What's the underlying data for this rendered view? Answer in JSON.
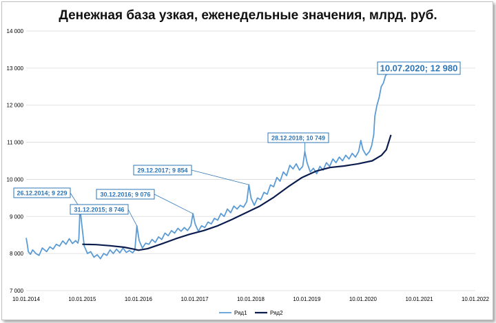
{
  "chart_data": {
    "type": "line",
    "title": "Денежная база узкая, еженедельные значения, млрд. руб.",
    "xlabel": "",
    "ylabel": "",
    "x_ticks": [
      "10.01.2014",
      "10.01.2015",
      "10.01.2016",
      "10.01.2017",
      "10.01.2018",
      "10.01.2019",
      "10.01.2020",
      "10.01.2021",
      "10.01.2022"
    ],
    "x_range": [
      "2014-01-10",
      "2022-01-10"
    ],
    "y_ticks": [
      "7 000",
      "8 000",
      "9 000",
      "10 000",
      "11 000",
      "12 000",
      "13 000",
      "14 000"
    ],
    "ylim": [
      7000,
      14000
    ],
    "grid": "horizontal",
    "legend_position": "bottom",
    "series": [
      {
        "name": "Ряд1",
        "color": "#5b9bd5",
        "points": [
          [
            "2014-01-10",
            8420
          ],
          [
            "2014-01-17",
            8250
          ],
          [
            "2014-01-24",
            8050
          ],
          [
            "2014-02-07",
            7980
          ],
          [
            "2014-02-21",
            8100
          ],
          [
            "2014-03-14",
            8000
          ],
          [
            "2014-04-04",
            7950
          ],
          [
            "2014-04-25",
            8150
          ],
          [
            "2014-05-23",
            8050
          ],
          [
            "2014-06-13",
            8180
          ],
          [
            "2014-07-04",
            8120
          ],
          [
            "2014-07-25",
            8250
          ],
          [
            "2014-08-15",
            8200
          ],
          [
            "2014-09-05",
            8340
          ],
          [
            "2014-09-26",
            8250
          ],
          [
            "2014-10-17",
            8400
          ],
          [
            "2014-11-07",
            8270
          ],
          [
            "2014-11-28",
            8350
          ],
          [
            "2014-12-12",
            8280
          ],
          [
            "2014-12-19",
            8400
          ],
          [
            "2014-12-26",
            9229
          ],
          [
            "2015-01-09",
            8700
          ],
          [
            "2015-01-23",
            8200
          ],
          [
            "2015-02-13",
            8000
          ],
          [
            "2015-03-06",
            8050
          ],
          [
            "2015-03-27",
            7900
          ],
          [
            "2015-04-17",
            7970
          ],
          [
            "2015-05-08",
            7860
          ],
          [
            "2015-05-29",
            8000
          ],
          [
            "2015-06-19",
            7950
          ],
          [
            "2015-07-10",
            8100
          ],
          [
            "2015-07-31",
            8000
          ],
          [
            "2015-08-21",
            8120
          ],
          [
            "2015-09-11",
            8020
          ],
          [
            "2015-10-02",
            8150
          ],
          [
            "2015-10-23",
            8030
          ],
          [
            "2015-11-13",
            8080
          ],
          [
            "2015-12-04",
            8020
          ],
          [
            "2015-12-18",
            8100
          ],
          [
            "2015-12-31",
            8746
          ],
          [
            "2016-01-15",
            8350
          ],
          [
            "2016-02-05",
            8150
          ],
          [
            "2016-02-26",
            8280
          ],
          [
            "2016-03-18",
            8250
          ],
          [
            "2016-04-08",
            8380
          ],
          [
            "2016-04-29",
            8300
          ],
          [
            "2016-05-20",
            8450
          ],
          [
            "2016-06-10",
            8380
          ],
          [
            "2016-07-01",
            8550
          ],
          [
            "2016-07-22",
            8480
          ],
          [
            "2016-08-12",
            8620
          ],
          [
            "2016-09-02",
            8550
          ],
          [
            "2016-09-23",
            8680
          ],
          [
            "2016-10-14",
            8600
          ],
          [
            "2016-11-04",
            8700
          ],
          [
            "2016-11-25",
            8620
          ],
          [
            "2016-12-16",
            8750
          ],
          [
            "2016-12-30",
            9076
          ],
          [
            "2017-01-13",
            8800
          ],
          [
            "2017-02-03",
            8600
          ],
          [
            "2017-02-24",
            8750
          ],
          [
            "2017-03-17",
            8700
          ],
          [
            "2017-04-07",
            8850
          ],
          [
            "2017-04-28",
            8800
          ],
          [
            "2017-05-19",
            8950
          ],
          [
            "2017-06-09",
            8900
          ],
          [
            "2017-06-30",
            9080
          ],
          [
            "2017-07-21",
            9000
          ],
          [
            "2017-08-11",
            9200
          ],
          [
            "2017-09-01",
            9100
          ],
          [
            "2017-09-22",
            9280
          ],
          [
            "2017-10-13",
            9200
          ],
          [
            "2017-11-03",
            9300
          ],
          [
            "2017-11-24",
            9250
          ],
          [
            "2017-12-15",
            9400
          ],
          [
            "2017-12-29",
            9854
          ],
          [
            "2018-01-12",
            9500
          ],
          [
            "2018-02-02",
            9300
          ],
          [
            "2018-02-23",
            9500
          ],
          [
            "2018-03-16",
            9450
          ],
          [
            "2018-04-06",
            9650
          ],
          [
            "2018-04-27",
            9600
          ],
          [
            "2018-05-18",
            9850
          ],
          [
            "2018-06-08",
            9800
          ],
          [
            "2018-06-29",
            10050
          ],
          [
            "2018-07-20",
            9950
          ],
          [
            "2018-08-10",
            10200
          ],
          [
            "2018-08-31",
            10100
          ],
          [
            "2018-09-21",
            10380
          ],
          [
            "2018-10-12",
            10280
          ],
          [
            "2018-11-02",
            10420
          ],
          [
            "2018-11-23",
            10250
          ],
          [
            "2018-12-14",
            10350
          ],
          [
            "2018-12-28",
            10749
          ],
          [
            "2019-01-11",
            10450
          ],
          [
            "2019-02-01",
            10200
          ],
          [
            "2019-02-22",
            10300
          ],
          [
            "2019-03-15",
            10150
          ],
          [
            "2019-04-05",
            10350
          ],
          [
            "2019-04-26",
            10250
          ],
          [
            "2019-05-17",
            10450
          ],
          [
            "2019-06-07",
            10350
          ],
          [
            "2019-06-28",
            10550
          ],
          [
            "2019-07-19",
            10450
          ],
          [
            "2019-08-09",
            10600
          ],
          [
            "2019-08-30",
            10500
          ],
          [
            "2019-09-20",
            10650
          ],
          [
            "2019-10-11",
            10550
          ],
          [
            "2019-11-01",
            10700
          ],
          [
            "2019-11-22",
            10600
          ],
          [
            "2019-12-13",
            10750
          ],
          [
            "2019-12-27",
            11050
          ],
          [
            "2020-01-10",
            10800
          ],
          [
            "2020-01-31",
            10650
          ],
          [
            "2020-02-21",
            10750
          ],
          [
            "2020-03-06",
            10900
          ],
          [
            "2020-03-20",
            11200
          ],
          [
            "2020-03-27",
            11700
          ],
          [
            "2020-04-10",
            12000
          ],
          [
            "2020-04-24",
            12200
          ],
          [
            "2020-05-08",
            12500
          ],
          [
            "2020-05-22",
            12600
          ],
          [
            "2020-06-05",
            12800
          ],
          [
            "2020-06-19",
            12850
          ],
          [
            "2020-07-03",
            12920
          ],
          [
            "2020-07-10",
            12980
          ]
        ]
      },
      {
        "name": "Ряд2",
        "color": "#0b1d4e",
        "points": [
          [
            "2015-01-10",
            8250
          ],
          [
            "2015-04-10",
            8240
          ],
          [
            "2015-07-10",
            8210
          ],
          [
            "2015-10-10",
            8170
          ],
          [
            "2015-12-10",
            8120
          ],
          [
            "2016-01-10",
            8090
          ],
          [
            "2016-03-10",
            8130
          ],
          [
            "2016-06-10",
            8260
          ],
          [
            "2016-09-10",
            8400
          ],
          [
            "2016-12-10",
            8520
          ],
          [
            "2017-03-10",
            8620
          ],
          [
            "2017-06-10",
            8750
          ],
          [
            "2017-09-10",
            8920
          ],
          [
            "2017-12-10",
            9100
          ],
          [
            "2018-03-10",
            9280
          ],
          [
            "2018-06-10",
            9520
          ],
          [
            "2018-09-10",
            9800
          ],
          [
            "2018-12-10",
            10050
          ],
          [
            "2019-03-10",
            10220
          ],
          [
            "2019-06-10",
            10320
          ],
          [
            "2019-09-10",
            10360
          ],
          [
            "2019-12-10",
            10420
          ],
          [
            "2020-03-10",
            10500
          ],
          [
            "2020-05-10",
            10650
          ],
          [
            "2020-06-10",
            10800
          ],
          [
            "2020-07-10",
            11200
          ]
        ]
      }
    ],
    "annotations": [
      {
        "label": "26.12.2014; 9 229",
        "x": "2014-12-26",
        "y": 9229
      },
      {
        "label": "31.12.2015; 8 746",
        "x": "2015-12-31",
        "y": 8746
      },
      {
        "label": "30.12.2016; 9 076",
        "x": "2016-12-30",
        "y": 9076
      },
      {
        "label": "29.12.2017; 9 854",
        "x": "2017-12-29",
        "y": 9854
      },
      {
        "label": "28.12.2018; 10 749",
        "x": "2018-12-28",
        "y": 10749
      },
      {
        "label": "10.07.2020; 12 980",
        "x": "2020-07-10",
        "y": 12980
      }
    ]
  }
}
